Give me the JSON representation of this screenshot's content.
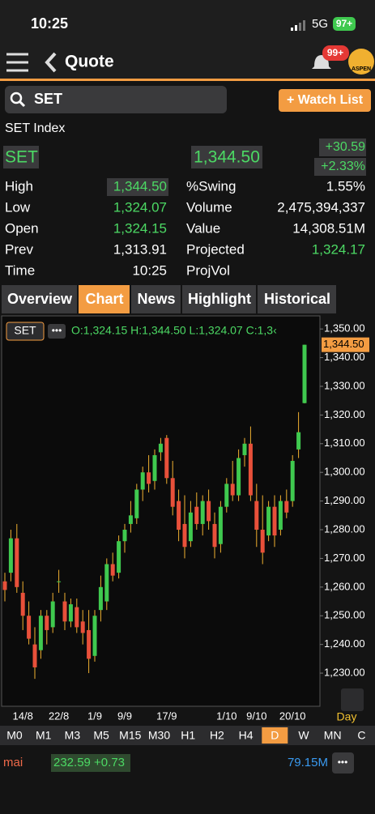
{
  "status_bar": {
    "time": "10:25",
    "network": "5G",
    "battery": "97+"
  },
  "header": {
    "title": "Quote",
    "badge": "99+",
    "logo": "ASPEN"
  },
  "search": {
    "query": "SET",
    "button": "+ Watch List"
  },
  "quote": {
    "name": "SET Index",
    "symbol": "SET",
    "last": "1,344.50",
    "change": "+30.59",
    "change_pct": "+2.33%"
  },
  "stats": {
    "left": [
      {
        "label": "High",
        "value": "1,344.50",
        "color": "#4cd964"
      },
      {
        "label": "Low",
        "value": "1,324.07",
        "color": "#4cd964"
      },
      {
        "label": "Open",
        "value": "1,324.15",
        "color": "#4cd964"
      },
      {
        "label": "Prev",
        "value": "1,313.91"
      },
      {
        "label": "Time",
        "value": "10:25"
      }
    ],
    "right": [
      {
        "label": "%Swing",
        "value": "1.55%"
      },
      {
        "label": "Volume",
        "value": "2,475,394,337"
      },
      {
        "label": "Value",
        "value": "14,308.51M"
      },
      {
        "label": "Projected",
        "value": "1,324.17",
        "color": "#4cd964"
      },
      {
        "label": "ProjVol"
      }
    ]
  },
  "tabs": {
    "items": [
      "Overview",
      "Chart",
      "News",
      "Highlight",
      "Historical"
    ],
    "active": 1
  },
  "chart_data": {
    "type": "candlestick",
    "symbol_label": "SET",
    "ohlc_text": "O:1,324.15 H:1,344.50 L:1,324.07 C:1,3‹",
    "period": "Day",
    "categories": [
      null,
      null,
      null,
      "14/8",
      null,
      null,
      null,
      null,
      null,
      "22/8",
      null,
      null,
      null,
      null,
      null,
      "1/9",
      null,
      null,
      null,
      null,
      "9/9",
      null,
      null,
      null,
      null,
      null,
      null,
      "17/9",
      null,
      null,
      null,
      null,
      null,
      null,
      null,
      null,
      null,
      "1/10",
      null,
      null,
      null,
      null,
      "9/10",
      null,
      null,
      null,
      null,
      null,
      "20/10",
      null,
      null
    ],
    "open": [
      1262,
      1265,
      1277,
      1258,
      1250,
      1240,
      1238,
      1250,
      1246,
      1262,
      1255,
      1248,
      1253,
      1248,
      1245,
      1236,
      1252,
      1255,
      1268,
      1265,
      1276,
      1282,
      1284,
      1294,
      1300,
      1297,
      1307,
      1312,
      1298,
      1290,
      1282,
      1276,
      1288,
      1282,
      1290,
      1282,
      1275,
      1288,
      1296,
      1292,
      1306,
      1310,
      1290,
      1280,
      1278,
      1288,
      1280,
      1290,
      1290,
      1308,
      1324.15
    ],
    "high": [
      1265,
      1280,
      1282,
      1262,
      1255,
      1246,
      1252,
      1252,
      1258,
      1266,
      1258,
      1256,
      1256,
      1252,
      1252,
      1252,
      1264,
      1270,
      1272,
      1278,
      1282,
      1290,
      1296,
      1302,
      1306,
      1308,
      1312,
      1313,
      1304,
      1294,
      1292,
      1290,
      1293,
      1292,
      1294,
      1286,
      1290,
      1298,
      1304,
      1308,
      1312,
      1316,
      1296,
      1292,
      1290,
      1292,
      1292,
      1294,
      1306,
      1321,
      1344.5
    ],
    "low": [
      1255,
      1262,
      1258,
      1245,
      1240,
      1228,
      1235,
      1240,
      1244,
      1258,
      1245,
      1246,
      1244,
      1240,
      1230,
      1234,
      1248,
      1252,
      1262,
      1263,
      1272,
      1279,
      1282,
      1290,
      1293,
      1294,
      1304,
      1296,
      1285,
      1276,
      1270,
      1274,
      1280,
      1278,
      1280,
      1270,
      1272,
      1286,
      1290,
      1290,
      1302,
      1290,
      1274,
      1268,
      1276,
      1274,
      1278,
      1284,
      1288,
      1305,
      1324.07
    ],
    "close": [
      1259,
      1277,
      1260,
      1250,
      1242,
      1232,
      1250,
      1245,
      1255,
      1262,
      1248,
      1254,
      1246,
      1244,
      1235,
      1250,
      1260,
      1268,
      1264,
      1276,
      1280,
      1285,
      1294,
      1300,
      1296,
      1306,
      1310,
      1298,
      1288,
      1280,
      1274,
      1286,
      1282,
      1290,
      1283,
      1274,
      1288,
      1296,
      1292,
      1305,
      1310,
      1292,
      1280,
      1272,
      1288,
      1278,
      1290,
      1286,
      1304,
      1314,
      1344.5
    ],
    "up_color": "#3fc94f",
    "down_color": "#e8503a",
    "wick_color": "#f0b030",
    "ylim": [
      1219,
      1354
    ],
    "yticks": [
      {
        "value": 1230,
        "label": "1,230.00"
      },
      {
        "value": 1240,
        "label": "1,240.00"
      },
      {
        "value": 1250,
        "label": "1,250.00"
      },
      {
        "value": 1260,
        "label": "1,260.00"
      },
      {
        "value": 1270,
        "label": "1,270.00"
      },
      {
        "value": 1280,
        "label": "1,280.00"
      },
      {
        "value": 1290,
        "label": "1,290.00"
      },
      {
        "value": 1300,
        "label": "1,300.00"
      },
      {
        "value": 1310,
        "label": "1,310.00"
      },
      {
        "value": 1320,
        "label": "1,320.00"
      },
      {
        "value": 1330,
        "label": "1,330.00"
      },
      {
        "value": 1340,
        "label": "1,340.00"
      },
      {
        "value": 1350,
        "label": "1,350.00"
      }
    ],
    "last": {
      "value": 1344.5,
      "label": "1,344.50"
    }
  },
  "timeframes": {
    "items": [
      "M0",
      "M1",
      "M3",
      "M5",
      "M15",
      "M30",
      "H1",
      "H2",
      "H4",
      "D",
      "W",
      "MN",
      "C"
    ],
    "active": 9
  },
  "indicator": {
    "name": "mai",
    "value": "232.59 +0.73",
    "volume": "79.15M"
  }
}
